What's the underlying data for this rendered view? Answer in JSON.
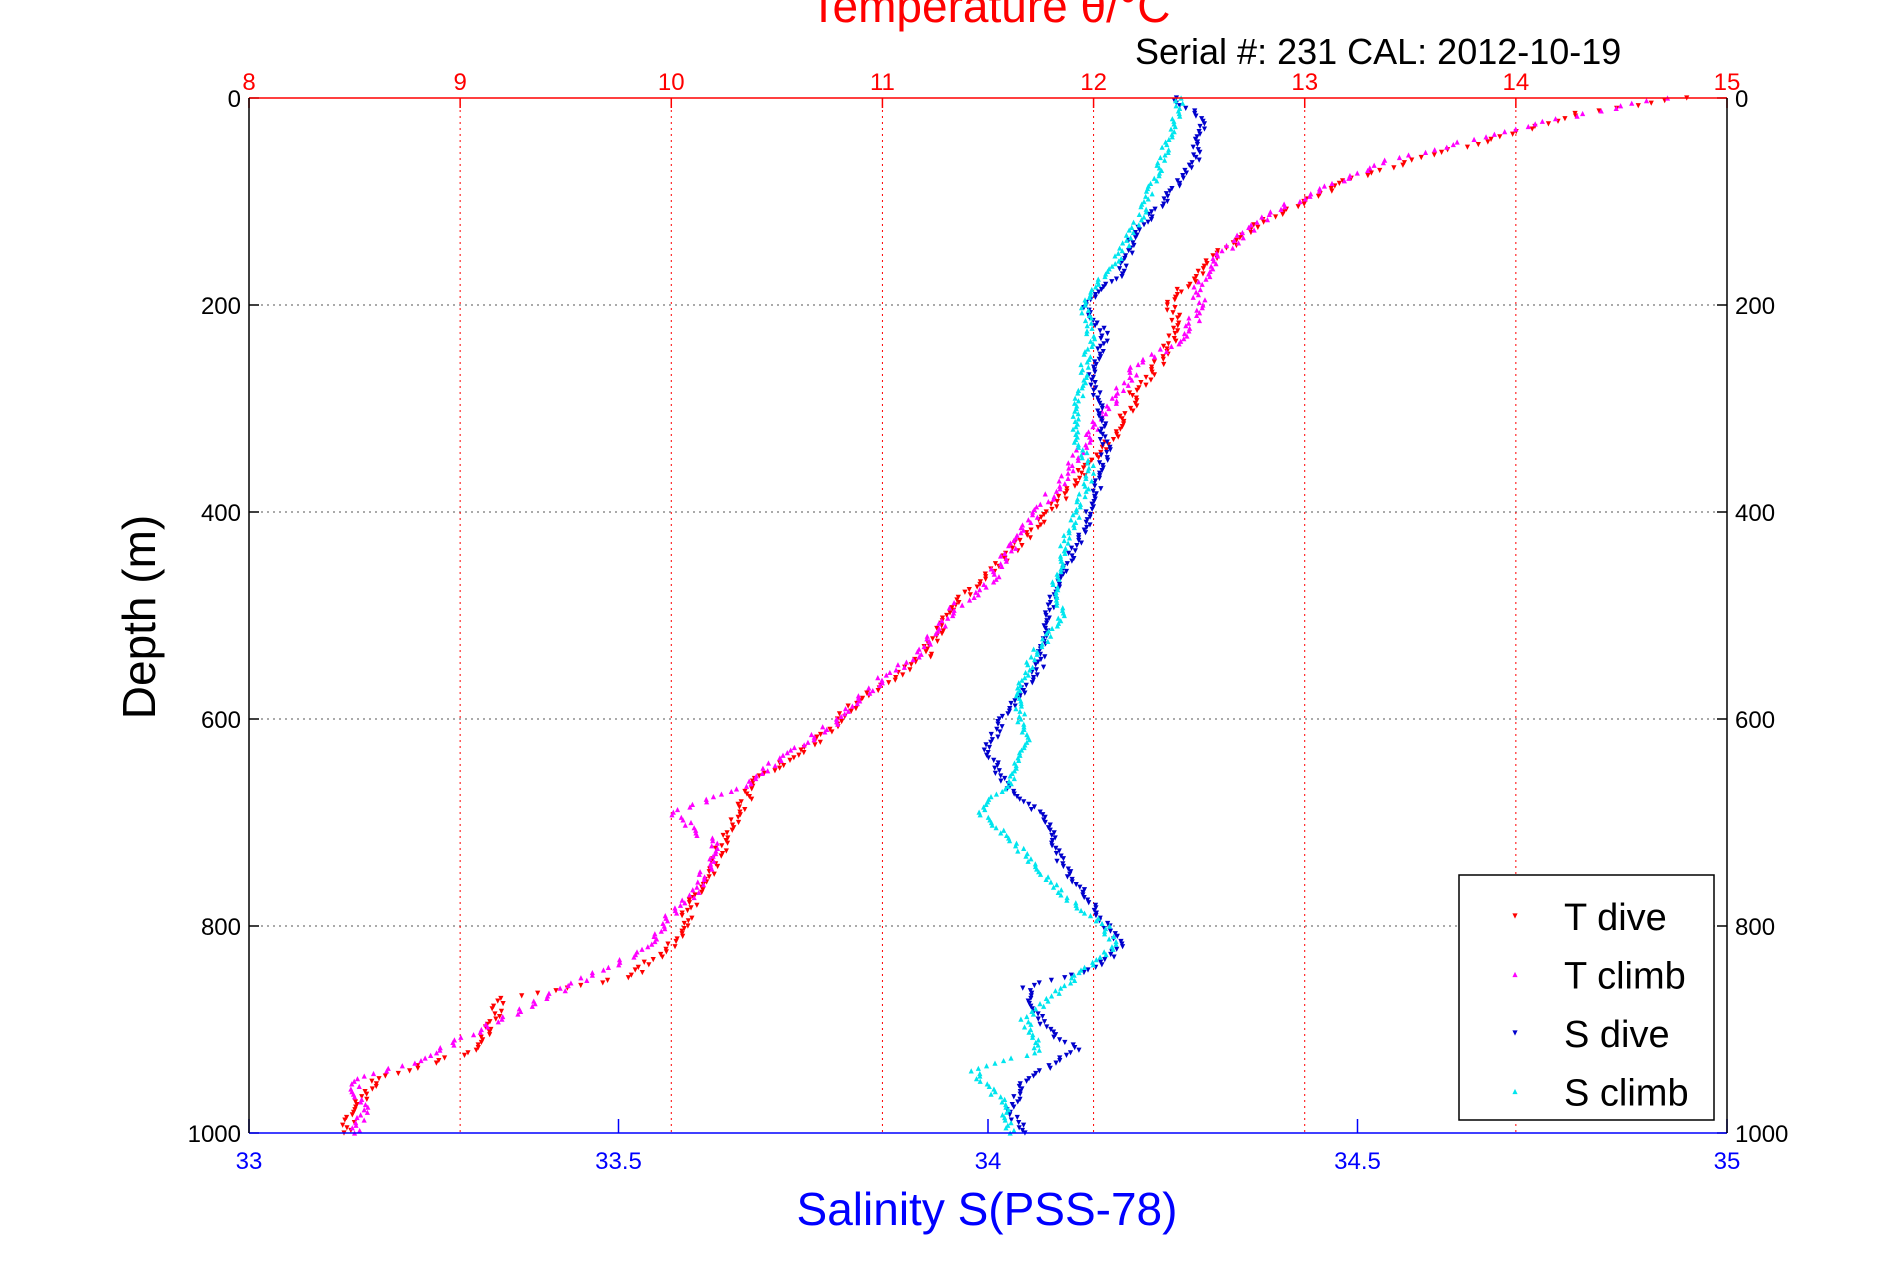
{
  "chart_data": {
    "type": "scatter",
    "title": "Temperature θ/°C",
    "subtitle": "Serial #: 231  CAL: 2012-10-19",
    "ylabel": "Depth (m)",
    "xlabel": "Salinity S(PSS-78)",
    "ylim": [
      0,
      1000
    ],
    "y_reversed": true,
    "y_ticks": [
      "0",
      "200",
      "400",
      "600",
      "800",
      "1000"
    ],
    "x_temp_lim": [
      8,
      15
    ],
    "x_temp_ticks": [
      "8",
      "9",
      "10",
      "11",
      "12",
      "13",
      "14",
      "15"
    ],
    "x_sal_lim": [
      33,
      35
    ],
    "x_sal_ticks": [
      "33",
      "33.5",
      "34",
      "34.5",
      "35"
    ],
    "grid": "dotted",
    "legend_position": "bottom-right",
    "colors": {
      "temp_axis": "#ff0000",
      "sal_axis": "#0000ff",
      "t_dive": "#ff0000",
      "t_climb": "#ff00ff",
      "s_dive": "#0000cc",
      "s_climb": "#00e5ee"
    },
    "series": [
      {
        "name": "T dive",
        "axis": "temperature",
        "color": "#ff0000",
        "points": [
          [
            14.8,
            0
          ],
          [
            14.3,
            15
          ],
          [
            13.9,
            40
          ],
          [
            13.6,
            55
          ],
          [
            13.2,
            80
          ],
          [
            13.0,
            100
          ],
          [
            12.8,
            120
          ],
          [
            12.6,
            150
          ],
          [
            12.45,
            180
          ],
          [
            12.35,
            200
          ],
          [
            12.4,
            215
          ],
          [
            12.35,
            240
          ],
          [
            12.3,
            260
          ],
          [
            12.2,
            285
          ],
          [
            12.15,
            310
          ],
          [
            12.05,
            340
          ],
          [
            11.95,
            360
          ],
          [
            11.8,
            400
          ],
          [
            11.6,
            440
          ],
          [
            11.4,
            480
          ],
          [
            11.3,
            500
          ],
          [
            11.2,
            540
          ],
          [
            10.9,
            580
          ],
          [
            10.7,
            620
          ],
          [
            10.4,
            660
          ],
          [
            10.3,
            700
          ],
          [
            10.2,
            740
          ],
          [
            10.1,
            780
          ],
          [
            10.0,
            820
          ],
          [
            9.8,
            850
          ],
          [
            9.2,
            870
          ],
          [
            9.1,
            920
          ],
          [
            8.9,
            930
          ],
          [
            8.6,
            950
          ],
          [
            8.5,
            980
          ],
          [
            8.45,
            1000
          ]
        ]
      },
      {
        "name": "T climb",
        "axis": "temperature",
        "color": "#ff00ff",
        "points": [
          [
            14.7,
            0
          ],
          [
            14.2,
            20
          ],
          [
            13.8,
            40
          ],
          [
            13.4,
            60
          ],
          [
            13.1,
            85
          ],
          [
            12.85,
            110
          ],
          [
            12.6,
            150
          ],
          [
            12.5,
            180
          ],
          [
            12.5,
            200
          ],
          [
            12.45,
            230
          ],
          [
            12.2,
            260
          ],
          [
            12.1,
            290
          ],
          [
            12.0,
            320
          ],
          [
            11.85,
            370
          ],
          [
            11.65,
            420
          ],
          [
            11.5,
            470
          ],
          [
            11.35,
            490
          ],
          [
            11.15,
            540
          ],
          [
            11.0,
            560
          ],
          [
            10.8,
            600
          ],
          [
            10.5,
            640
          ],
          [
            10.3,
            670
          ],
          [
            10.0,
            690
          ],
          [
            10.2,
            720
          ],
          [
            10.15,
            760
          ],
          [
            10.0,
            790
          ],
          [
            9.9,
            820
          ],
          [
            9.6,
            850
          ],
          [
            9.3,
            880
          ],
          [
            9.0,
            910
          ],
          [
            8.8,
            930
          ],
          [
            8.5,
            950
          ],
          [
            8.55,
            980
          ],
          [
            8.5,
            1000
          ]
        ]
      },
      {
        "name": "S dive",
        "axis": "salinity",
        "color": "#0000cc",
        "points": [
          [
            34.25,
            0
          ],
          [
            34.29,
            20
          ],
          [
            34.28,
            60
          ],
          [
            34.25,
            90
          ],
          [
            34.2,
            130
          ],
          [
            34.18,
            170
          ],
          [
            34.15,
            190
          ],
          [
            34.13,
            200
          ],
          [
            34.16,
            230
          ],
          [
            34.14,
            260
          ],
          [
            34.15,
            300
          ],
          [
            34.16,
            340
          ],
          [
            34.15,
            370
          ],
          [
            34.13,
            420
          ],
          [
            34.1,
            460
          ],
          [
            34.08,
            500
          ],
          [
            34.07,
            550
          ],
          [
            34.02,
            600
          ],
          [
            34.0,
            630
          ],
          [
            34.02,
            660
          ],
          [
            34.08,
            700
          ],
          [
            34.1,
            740
          ],
          [
            34.14,
            780
          ],
          [
            34.18,
            820
          ],
          [
            34.15,
            840
          ],
          [
            34.05,
            860
          ],
          [
            34.08,
            900
          ],
          [
            34.12,
            920
          ],
          [
            34.05,
            950
          ],
          [
            34.03,
            980
          ],
          [
            34.05,
            1000
          ]
        ]
      },
      {
        "name": "S climb",
        "axis": "salinity",
        "color": "#00e5ee",
        "points": [
          [
            34.26,
            0
          ],
          [
            34.25,
            30
          ],
          [
            34.23,
            70
          ],
          [
            34.21,
            110
          ],
          [
            34.18,
            150
          ],
          [
            34.15,
            180
          ],
          [
            34.13,
            200
          ],
          [
            34.14,
            230
          ],
          [
            34.13,
            260
          ],
          [
            34.12,
            300
          ],
          [
            34.12,
            330
          ],
          [
            34.14,
            360
          ],
          [
            34.12,
            400
          ],
          [
            34.1,
            440
          ],
          [
            34.09,
            480
          ],
          [
            34.1,
            500
          ],
          [
            34.06,
            540
          ],
          [
            34.04,
            580
          ],
          [
            34.05,
            620
          ],
          [
            34.03,
            660
          ],
          [
            33.99,
            690
          ],
          [
            34.05,
            730
          ],
          [
            34.1,
            770
          ],
          [
            34.16,
            800
          ],
          [
            34.17,
            820
          ],
          [
            34.1,
            860
          ],
          [
            34.05,
            890
          ],
          [
            34.07,
            920
          ],
          [
            33.98,
            940
          ],
          [
            34.02,
            970
          ],
          [
            34.03,
            1000
          ]
        ]
      }
    ]
  }
}
